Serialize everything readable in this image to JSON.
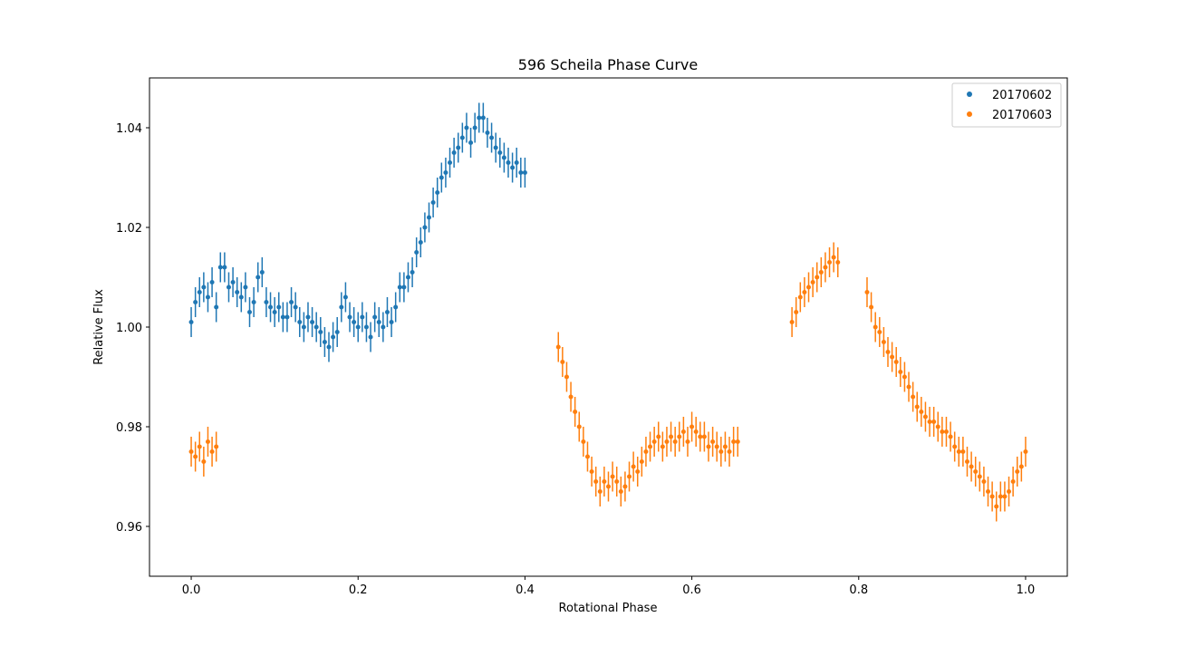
{
  "chart_data": {
    "type": "scatter",
    "title": "596 Scheila Phase Curve",
    "xlabel": "Rotational Phase",
    "ylabel": "Relative Flux",
    "xlim": [
      -0.05,
      1.05
    ],
    "ylim": [
      0.95,
      1.05
    ],
    "xticks": [
      "0.0",
      "0.2",
      "0.4",
      "0.6",
      "0.8",
      "1.0"
    ],
    "yticks": [
      "0.96",
      "0.98",
      "1.00",
      "1.02",
      "1.04"
    ],
    "grid": false,
    "legend_position": "top-right",
    "error_bar_half_width": 0.003,
    "series": [
      {
        "name": "20170602",
        "color": "#1f77b4",
        "x": [
          0.0,
          0.005,
          0.01,
          0.015,
          0.02,
          0.025,
          0.03,
          0.035,
          0.04,
          0.045,
          0.05,
          0.055,
          0.06,
          0.065,
          0.07,
          0.075,
          0.08,
          0.085,
          0.09,
          0.095,
          0.1,
          0.105,
          0.11,
          0.115,
          0.12,
          0.125,
          0.13,
          0.135,
          0.14,
          0.145,
          0.15,
          0.155,
          0.16,
          0.165,
          0.17,
          0.175,
          0.18,
          0.185,
          0.19,
          0.195,
          0.2,
          0.205,
          0.21,
          0.215,
          0.22,
          0.225,
          0.23,
          0.235,
          0.24,
          0.245,
          0.25,
          0.255,
          0.26,
          0.265,
          0.27,
          0.275,
          0.28,
          0.285,
          0.29,
          0.295,
          0.3,
          0.305,
          0.31,
          0.315,
          0.32,
          0.325,
          0.33,
          0.335,
          0.34,
          0.345,
          0.35,
          0.355,
          0.36,
          0.365,
          0.37,
          0.375,
          0.38,
          0.385,
          0.39,
          0.395,
          0.4
        ],
        "y": [
          1.001,
          1.005,
          1.007,
          1.008,
          1.006,
          1.009,
          1.004,
          1.012,
          1.012,
          1.008,
          1.009,
          1.007,
          1.006,
          1.008,
          1.003,
          1.005,
          1.01,
          1.011,
          1.005,
          1.004,
          1.003,
          1.004,
          1.002,
          1.002,
          1.005,
          1.004,
          1.001,
          1.0,
          1.002,
          1.001,
          1.0,
          0.999,
          0.997,
          0.996,
          0.998,
          0.999,
          1.004,
          1.006,
          1.002,
          1.001,
          1.0,
          1.002,
          1.0,
          0.998,
          1.002,
          1.001,
          1.0,
          1.003,
          1.001,
          1.004,
          1.008,
          1.008,
          1.01,
          1.011,
          1.015,
          1.017,
          1.02,
          1.022,
          1.025,
          1.027,
          1.03,
          1.031,
          1.033,
          1.035,
          1.036,
          1.038,
          1.04,
          1.037,
          1.04,
          1.042,
          1.042,
          1.039,
          1.038,
          1.036,
          1.035,
          1.034,
          1.033,
          1.032,
          1.033,
          1.031,
          1.031
        ]
      },
      {
        "name": "20170603",
        "color": "#ff7f0e",
        "x": [
          0.0,
          0.005,
          0.01,
          0.015,
          0.02,
          0.025,
          0.03,
          0.44,
          0.445,
          0.45,
          0.455,
          0.46,
          0.465,
          0.47,
          0.475,
          0.48,
          0.485,
          0.49,
          0.495,
          0.5,
          0.505,
          0.51,
          0.515,
          0.52,
          0.525,
          0.53,
          0.535,
          0.54,
          0.545,
          0.55,
          0.555,
          0.56,
          0.565,
          0.57,
          0.575,
          0.58,
          0.585,
          0.59,
          0.595,
          0.6,
          0.605,
          0.61,
          0.615,
          0.62,
          0.625,
          0.63,
          0.635,
          0.64,
          0.645,
          0.65,
          0.655,
          0.72,
          0.725,
          0.73,
          0.735,
          0.74,
          0.745,
          0.75,
          0.755,
          0.76,
          0.765,
          0.77,
          0.775,
          0.81,
          0.815,
          0.82,
          0.825,
          0.83,
          0.835,
          0.84,
          0.845,
          0.85,
          0.855,
          0.86,
          0.865,
          0.87,
          0.875,
          0.88,
          0.885,
          0.89,
          0.895,
          0.9,
          0.905,
          0.91,
          0.915,
          0.92,
          0.925,
          0.93,
          0.935,
          0.94,
          0.945,
          0.95,
          0.955,
          0.96,
          0.965,
          0.97,
          0.975,
          0.98,
          0.985,
          0.99,
          0.995,
          1.0
        ],
        "y": [
          0.975,
          0.974,
          0.976,
          0.973,
          0.977,
          0.975,
          0.976,
          0.996,
          0.993,
          0.99,
          0.986,
          0.983,
          0.98,
          0.977,
          0.974,
          0.971,
          0.969,
          0.967,
          0.969,
          0.968,
          0.97,
          0.969,
          0.967,
          0.968,
          0.97,
          0.972,
          0.971,
          0.973,
          0.975,
          0.976,
          0.977,
          0.978,
          0.976,
          0.977,
          0.978,
          0.977,
          0.978,
          0.979,
          0.977,
          0.98,
          0.979,
          0.978,
          0.978,
          0.976,
          0.977,
          0.976,
          0.975,
          0.976,
          0.975,
          0.977,
          0.977,
          1.001,
          1.003,
          1.006,
          1.007,
          1.008,
          1.009,
          1.01,
          1.011,
          1.012,
          1.013,
          1.014,
          1.013,
          1.007,
          1.004,
          1.0,
          0.999,
          0.997,
          0.995,
          0.994,
          0.993,
          0.991,
          0.99,
          0.988,
          0.986,
          0.984,
          0.983,
          0.982,
          0.981,
          0.981,
          0.98,
          0.979,
          0.979,
          0.978,
          0.976,
          0.975,
          0.975,
          0.973,
          0.972,
          0.971,
          0.97,
          0.969,
          0.967,
          0.966,
          0.964,
          0.966,
          0.966,
          0.967,
          0.969,
          0.971,
          0.972,
          0.975
        ]
      }
    ]
  }
}
